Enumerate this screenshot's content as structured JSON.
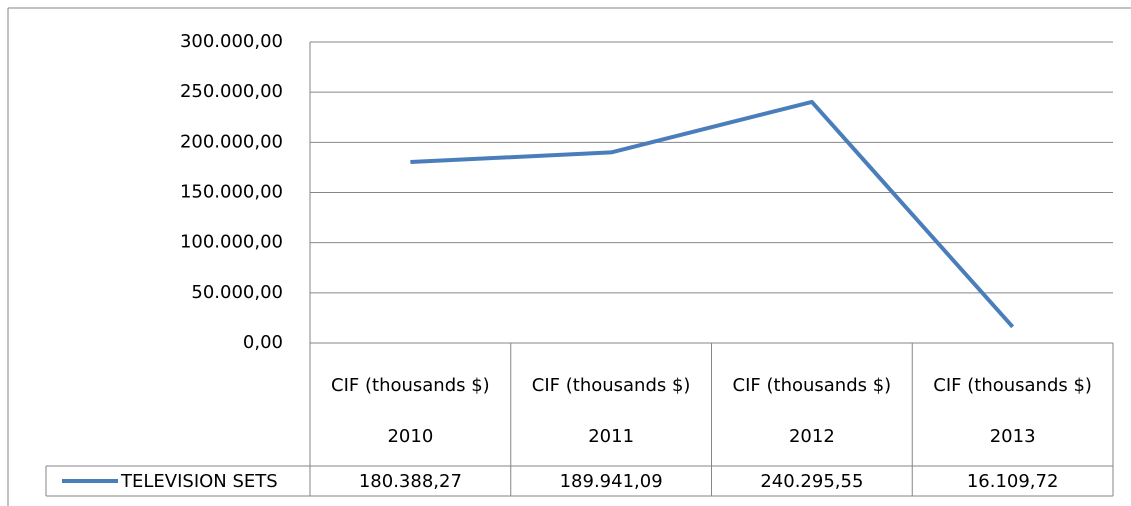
{
  "chart_data": {
    "type": "line",
    "category_groups": [
      "CIF (thousands $)",
      "CIF (thousands $)",
      "CIF (thousands $)",
      "CIF (thousands $)"
    ],
    "categories": [
      "2010",
      "2011",
      "2012",
      "2013"
    ],
    "series": [
      {
        "name": "TELEVISION SETS",
        "color": "#4a7ebb",
        "values": [
          180388.27,
          189941.09,
          240295.55,
          16109.72
        ],
        "value_labels": [
          "180.388,27",
          "189.941,09",
          "240.295,55",
          "16.109,72"
        ]
      }
    ],
    "ylim": [
      0,
      300000
    ],
    "yticks": [
      {
        "value": 0,
        "label": "0,00"
      },
      {
        "value": 50000,
        "label": "50.000,00"
      },
      {
        "value": 100000,
        "label": "100.000,00"
      },
      {
        "value": 150000,
        "label": "150.000,00"
      },
      {
        "value": 200000,
        "label": "200.000,00"
      },
      {
        "value": 250000,
        "label": "250.000,00"
      },
      {
        "value": 300000,
        "label": "300.000,00"
      }
    ],
    "grid": true,
    "data_table": true
  }
}
